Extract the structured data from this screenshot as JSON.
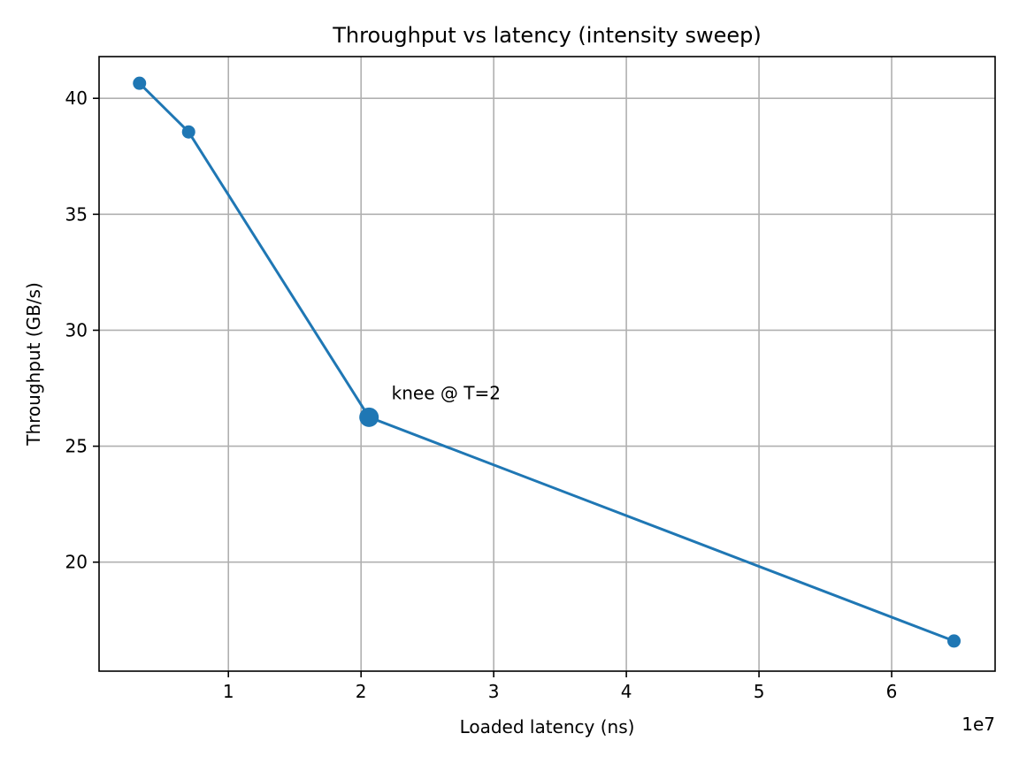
{
  "chart_data": {
    "type": "line",
    "title": "Throughput vs latency (intensity sweep)",
    "xlabel": "Loaded latency (ns)",
    "ylabel": "Throughput (GB/s)",
    "x_offset_label": "1e7",
    "xlim": [
      250000,
      67800000
    ],
    "ylim": [
      15.3,
      41.8
    ],
    "xticks": [
      10000000,
      20000000,
      30000000,
      40000000,
      50000000,
      60000000
    ],
    "xtick_labels": [
      "1",
      "2",
      "3",
      "4",
      "5",
      "6"
    ],
    "yticks": [
      20,
      25,
      30,
      35,
      40
    ],
    "ytick_labels": [
      "20",
      "25",
      "30",
      "35",
      "40"
    ],
    "grid": true,
    "color": "#1f77b4",
    "series": [
      {
        "x": [
          3300000,
          7000000,
          20600000,
          64700000
        ],
        "y": [
          40.65,
          38.55,
          26.25,
          16.6
        ]
      }
    ],
    "highlight": {
      "x": 20600000,
      "y": 26.25
    },
    "annotations": [
      {
        "text": "knee @ T=2",
        "x": 22300000,
        "y": 27.3
      }
    ]
  }
}
